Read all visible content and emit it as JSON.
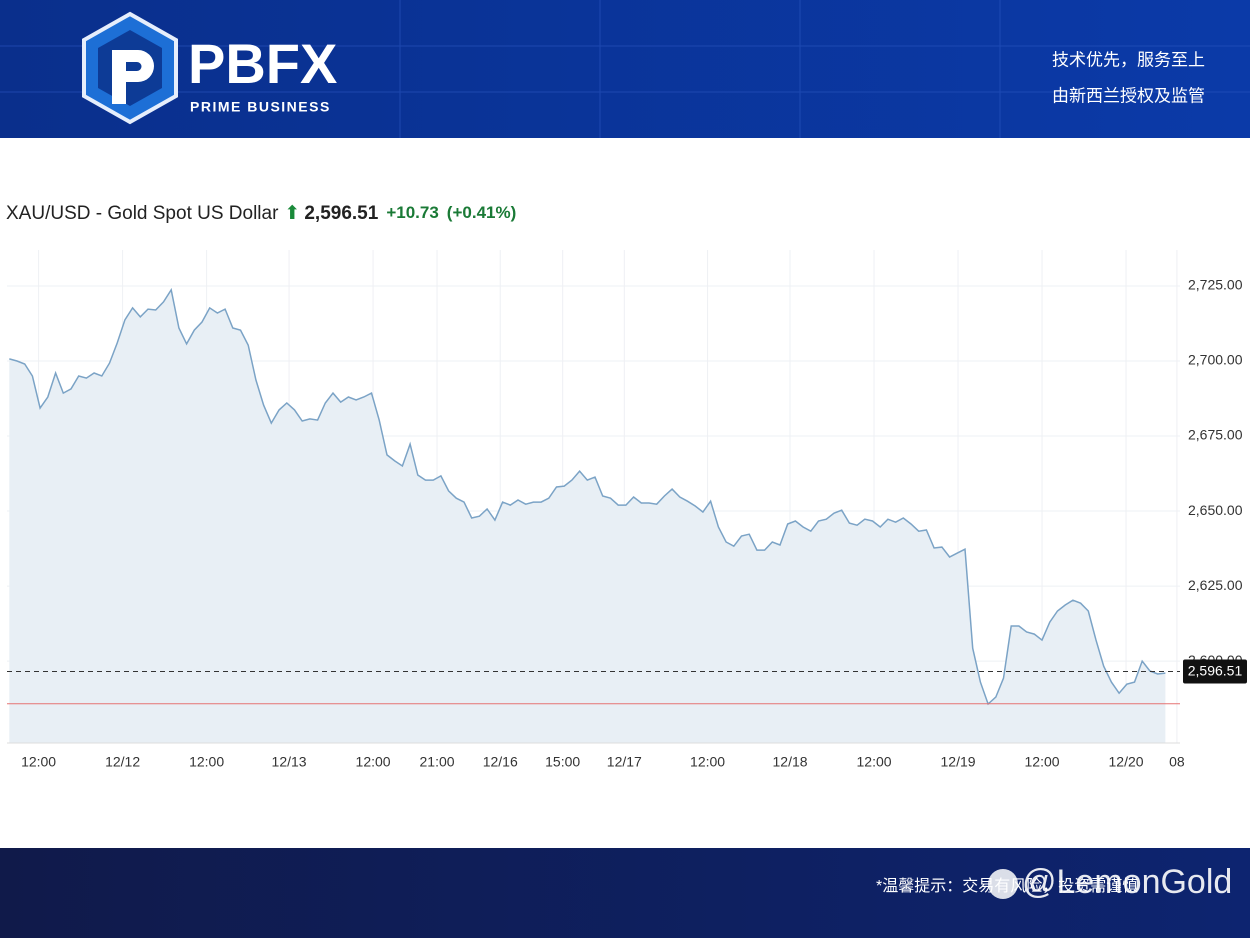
{
  "header": {
    "brand": "PBFX",
    "tagline": "PRIME BUSINESS",
    "slogan_lines": [
      "技术优先，服务至上",
      "由新西兰授权及监管"
    ]
  },
  "chart_data": {
    "type": "line",
    "title": "XAU/USD - Gold Spot US Dollar",
    "last_price": {
      "value": 2596.51,
      "label": "2,596.51"
    },
    "change": "+10.73",
    "change_pct": "(+0.41%)",
    "reference_line": 2585.78,
    "reference_color": "#e57373",
    "color": "#7ba3c6",
    "fill": "#e8eff5",
    "grid": true,
    "values": [
      2700.7,
      2700,
      2699,
      2695,
      2684.3,
      2688,
      2696,
      2689.3,
      2690.7,
      2695,
      2694.3,
      2696,
      2695,
      2699.3,
      2706,
      2713.7,
      2717.7,
      2714.7,
      2717.3,
      2717,
      2719.7,
      2723.7,
      2711,
      2705.7,
      2710.3,
      2713,
      2717.7,
      2716,
      2717.3,
      2711,
      2710.3,
      2705.3,
      2693.7,
      2685.3,
      2679.3,
      2683.7,
      2686,
      2683.7,
      2680,
      2680.7,
      2680.3,
      2686,
      2689.3,
      2686.3,
      2688,
      2687,
      2688,
      2689.3,
      2680.3,
      2668.7,
      2666.7,
      2665,
      2672.3,
      2662,
      2660.3,
      2660.3,
      2661.7,
      2656.7,
      2654.3,
      2653,
      2647.7,
      2648.3,
      2650.7,
      2647,
      2653,
      2652,
      2653.7,
      2652.3,
      2653,
      2653,
      2654.3,
      2658,
      2658.3,
      2660.3,
      2663.3,
      2660.3,
      2661.3,
      2655,
      2654.3,
      2652,
      2652,
      2654.7,
      2652.7,
      2652.7,
      2652.3,
      2655,
      2657.3,
      2654.7,
      2653.3,
      2651.7,
      2649.7,
      2653.3,
      2644.7,
      2639.7,
      2638.3,
      2641.7,
      2642.3,
      2637,
      2637,
      2639.7,
      2638.7,
      2645.7,
      2646.7,
      2644.7,
      2643.3,
      2646.7,
      2647.3,
      2649.3,
      2650.3,
      2646,
      2645.3,
      2647.3,
      2646.7,
      2644.7,
      2647.3,
      2646.3,
      2647.7,
      2645.7,
      2643.3,
      2643.7,
      2637.7,
      2638,
      2634.7,
      2636,
      2637.3,
      2604.3,
      2593,
      2585.7,
      2588,
      2594.3,
      2611.7,
      2611.7,
      2609.7,
      2609,
      2607,
      2613,
      2616.7,
      2618.7,
      2620.3,
      2619.3,
      2616.7,
      2607,
      2598.3,
      2593,
      2589.3,
      2592.3,
      2593,
      2600,
      2596.7,
      2595.7,
      2596
    ],
    "xlim": [
      -0.3,
      151.9
    ],
    "xticks": [
      {
        "value": 3.8,
        "label": "12:00"
      },
      {
        "value": 14.7,
        "label": "12/12"
      },
      {
        "value": 25.6,
        "label": "12:00"
      },
      {
        "value": 36.3,
        "label": "12/13"
      },
      {
        "value": 47.2,
        "label": "12:00"
      },
      {
        "value": 55.5,
        "label": "21:00"
      },
      {
        "value": 63.7,
        "label": "12/16"
      },
      {
        "value": 71.8,
        "label": "15:00"
      },
      {
        "value": 79.8,
        "label": "12/17"
      },
      {
        "value": 90.6,
        "label": "12:00"
      },
      {
        "value": 101.3,
        "label": "12/18"
      },
      {
        "value": 112.2,
        "label": "12:00"
      },
      {
        "value": 123.1,
        "label": "12/19"
      },
      {
        "value": 134.0,
        "label": "12:00"
      },
      {
        "value": 144.9,
        "label": "12/20"
      },
      {
        "value": 151.5,
        "label": "08"
      }
    ],
    "ylim": [
      2572.7,
      2737
    ],
    "yticks": [
      {
        "value": 2600,
        "label": "2,600.00"
      },
      {
        "value": 2625,
        "label": "2,625.00"
      },
      {
        "value": 2650,
        "label": "2,650.00"
      },
      {
        "value": 2675,
        "label": "2,675.00"
      },
      {
        "value": 2700,
        "label": "2,700.00"
      },
      {
        "value": 2725,
        "label": "2,725.00"
      }
    ]
  },
  "footer": {
    "notice": "*温馨提示：交易有风险，投资需谨慎",
    "watermark": "@LemonGold"
  }
}
